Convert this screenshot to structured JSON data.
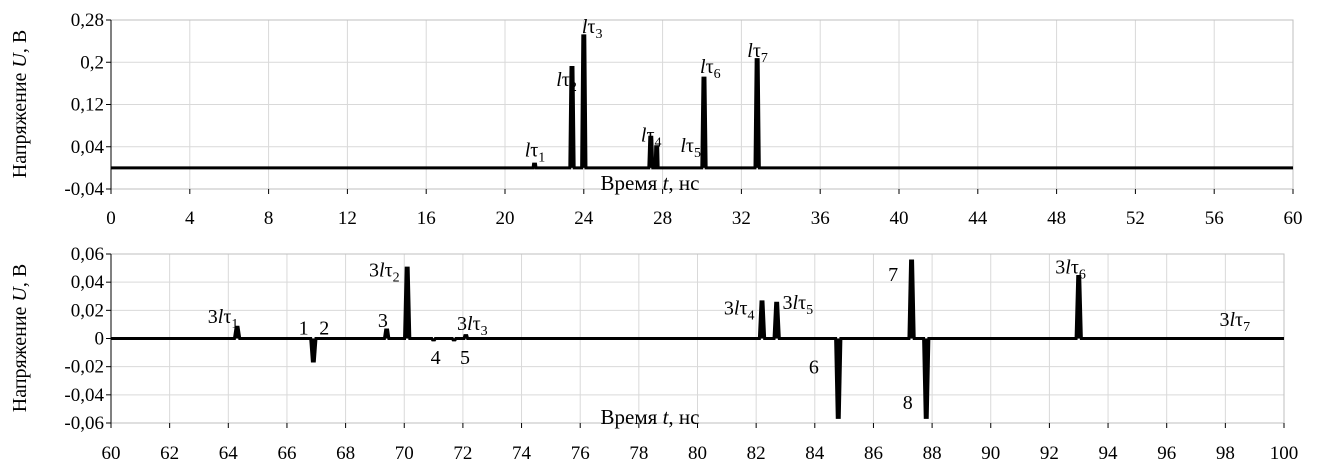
{
  "chart_data": [
    {
      "type": "line",
      "xlabel_prefix": "Время ",
      "xlabel_var": "t",
      "xlabel_suffix": ", нс",
      "ylabel_prefix": "Напряжение ",
      "ylabel_var": "U",
      "ylabel_suffix": ", В",
      "xlim": [
        0,
        60
      ],
      "ylim": [
        -0.04,
        0.28
      ],
      "x_ticks": [
        0,
        4,
        8,
        12,
        16,
        20,
        24,
        28,
        32,
        36,
        40,
        44,
        48,
        52,
        56,
        60
      ],
      "y_ticks": [
        -0.04,
        0.04,
        0.12,
        0.2,
        0.28
      ],
      "y_tick_labels": [
        "-0,04",
        "0,04",
        "0,12",
        "0,2",
        "0,28"
      ],
      "grid": true,
      "pulses": [
        {
          "t": 21.5,
          "u": 0.007,
          "w": 0.15
        },
        {
          "t": 23.4,
          "u": 0.19,
          "w": 0.22
        },
        {
          "t": 24.0,
          "u": 0.25,
          "w": 0.22
        },
        {
          "t": 27.4,
          "u": 0.058,
          "w": 0.2
        },
        {
          "t": 27.7,
          "u": 0.04,
          "w": 0.15
        },
        {
          "t": 30.1,
          "u": 0.17,
          "w": 0.22
        },
        {
          "t": 32.8,
          "u": 0.205,
          "w": 0.22
        }
      ],
      "annotations": [
        {
          "pre": "",
          "var": "l",
          "sym": "τ",
          "sub": "1",
          "t": 21.0,
          "u": 0.022
        },
        {
          "pre": "",
          "var": "l",
          "sym": "τ",
          "sub": "2",
          "t": 22.6,
          "u": 0.155
        },
        {
          "pre": "",
          "var": "l",
          "sym": "τ",
          "sub": "3",
          "t": 23.9,
          "u": 0.255
        },
        {
          "pre": "",
          "var": "l",
          "sym": "τ",
          "sub": "4",
          "t": 26.9,
          "u": 0.05
        },
        {
          "pre": "",
          "var": "l",
          "sym": "τ",
          "sub": "5",
          "t": 28.9,
          "u": 0.03
        },
        {
          "pre": "",
          "var": "l",
          "sym": "τ",
          "sub": "6",
          "t": 29.9,
          "u": 0.18
        },
        {
          "pre": "",
          "var": "l",
          "sym": "τ",
          "sub": "7",
          "t": 32.3,
          "u": 0.21
        }
      ]
    },
    {
      "type": "line",
      "xlabel_prefix": "Время ",
      "xlabel_var": "t",
      "xlabel_suffix": ", нс",
      "ylabel_prefix": "Напряжение ",
      "ylabel_var": "U",
      "ylabel_suffix": ", В",
      "xlim": [
        60,
        100
      ],
      "ylim": [
        -0.06,
        0.06
      ],
      "x_ticks": [
        60,
        62,
        64,
        66,
        68,
        70,
        72,
        74,
        76,
        78,
        80,
        82,
        84,
        86,
        88,
        90,
        92,
        94,
        96,
        98,
        100
      ],
      "y_ticks": [
        -0.06,
        -0.04,
        -0.02,
        0,
        0.02,
        0.04,
        0.06
      ],
      "y_tick_labels": [
        "-0,06",
        "-0,04",
        "-0,02",
        "0",
        "0,02",
        "0,04",
        "0,06"
      ],
      "grid": true,
      "pulses": [
        {
          "t": 64.3,
          "u": 0.008,
          "w": 0.18
        },
        {
          "t": 66.9,
          "u": -0.016,
          "w": 0.18
        },
        {
          "t": 69.4,
          "u": 0.006,
          "w": 0.15
        },
        {
          "t": 70.1,
          "u": 0.05,
          "w": 0.18
        },
        {
          "t": 71.0,
          "u": -0.001,
          "w": 0.12
        },
        {
          "t": 71.7,
          "u": -0.001,
          "w": 0.12
        },
        {
          "t": 72.1,
          "u": 0.002,
          "w": 0.12
        },
        {
          "t": 82.2,
          "u": 0.026,
          "w": 0.18
        },
        {
          "t": 82.7,
          "u": 0.025,
          "w": 0.18
        },
        {
          "t": 84.8,
          "u": -0.056,
          "w": 0.18
        },
        {
          "t": 87.3,
          "u": 0.055,
          "w": 0.18
        },
        {
          "t": 87.8,
          "u": -0.056,
          "w": 0.18
        },
        {
          "t": 93.0,
          "u": 0.044,
          "w": 0.18
        }
      ],
      "annotations": [
        {
          "pre": "3",
          "var": "l",
          "sym": "τ",
          "sub": "1",
          "t": 63.3,
          "u": 0.011
        },
        {
          "pre": "",
          "var": "",
          "sym": "1",
          "sub": "",
          "t": 66.4,
          "u": 0.003
        },
        {
          "pre": "",
          "var": "",
          "sym": "2",
          "sub": "",
          "t": 67.1,
          "u": 0.003
        },
        {
          "pre": "",
          "var": "",
          "sym": "3",
          "sub": "",
          "t": 69.1,
          "u": 0.008
        },
        {
          "pre": "3",
          "var": "l",
          "sym": "τ",
          "sub": "2",
          "t": 68.8,
          "u": 0.044
        },
        {
          "pre": "",
          "var": "",
          "sym": "4",
          "sub": "",
          "t": 70.9,
          "u": -0.018
        },
        {
          "pre": "",
          "var": "",
          "sym": "5",
          "sub": "",
          "t": 71.9,
          "u": -0.018
        },
        {
          "pre": "3",
          "var": "l",
          "sym": "τ",
          "sub": "3",
          "t": 71.8,
          "u": 0.006
        },
        {
          "pre": "3",
          "var": "l",
          "sym": "τ",
          "sub": "4",
          "t": 80.9,
          "u": 0.017
        },
        {
          "pre": "3",
          "var": "l",
          "sym": "τ",
          "sub": "5",
          "t": 82.9,
          "u": 0.021
        },
        {
          "pre": "",
          "var": "",
          "sym": "6",
          "sub": "",
          "t": 83.8,
          "u": -0.025
        },
        {
          "pre": "",
          "var": "",
          "sym": "7",
          "sub": "",
          "t": 86.5,
          "u": 0.041
        },
        {
          "pre": "",
          "var": "",
          "sym": "8",
          "sub": "",
          "t": 87.0,
          "u": -0.05
        },
        {
          "pre": "3",
          "var": "l",
          "sym": "τ",
          "sub": "6",
          "t": 92.2,
          "u": 0.046
        },
        {
          "pre": "3",
          "var": "l",
          "sym": "τ",
          "sub": "7",
          "t": 97.8,
          "u": 0.009
        }
      ]
    }
  ]
}
